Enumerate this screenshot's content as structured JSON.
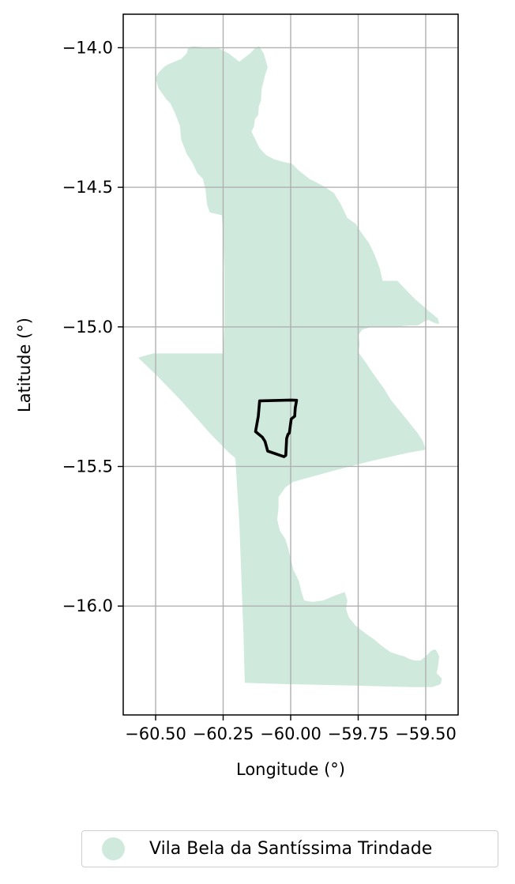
{
  "colors": {
    "region_fill": "#cfeadd",
    "grid": "#b0b0b0",
    "boundary": "#000000"
  },
  "axes": {
    "xlabel": "Longitude (°)",
    "ylabel": "Latitude (°)",
    "xlim": [
      -60.62,
      -59.38
    ],
    "ylim": [
      -16.39,
      -13.88
    ],
    "x_ticks": [
      {
        "value": -60.5,
        "label": "−60.50"
      },
      {
        "value": -60.25,
        "label": "−60.25"
      },
      {
        "value": -60.0,
        "label": "−60.00"
      },
      {
        "value": -59.75,
        "label": "−59.75"
      },
      {
        "value": -59.5,
        "label": "−59.50"
      }
    ],
    "y_ticks": [
      {
        "value": -14.0,
        "label": "−14.0"
      },
      {
        "value": -14.5,
        "label": "−14.5"
      },
      {
        "value": -15.0,
        "label": "−15.0"
      },
      {
        "value": -15.5,
        "label": "−15.5"
      },
      {
        "value": -16.0,
        "label": "−16.0"
      }
    ],
    "grid": true
  },
  "legend": {
    "label": "Vila Bela da Santíssima Trindade",
    "placement": "bottom-center"
  },
  "chart_data": {
    "type": "map",
    "region": {
      "name": "Vila Bela da Santíssima Trindade",
      "outline": [
        [
          -60.117,
          -13.995
        ],
        [
          -60.1,
          -14.02
        ],
        [
          -60.085,
          -14.07
        ],
        [
          -60.095,
          -14.1
        ],
        [
          -60.108,
          -14.15
        ],
        [
          -60.11,
          -14.19
        ],
        [
          -60.118,
          -14.21
        ],
        [
          -60.12,
          -14.24
        ],
        [
          -60.132,
          -14.255
        ],
        [
          -60.137,
          -14.285
        ],
        [
          -60.145,
          -14.3
        ],
        [
          -60.135,
          -14.32
        ],
        [
          -60.115,
          -14.36
        ],
        [
          -60.09,
          -14.385
        ],
        [
          -60.06,
          -14.4
        ],
        [
          -60.025,
          -14.41
        ],
        [
          -59.995,
          -14.415
        ],
        [
          -59.97,
          -14.44
        ],
        [
          -59.93,
          -14.47
        ],
        [
          -59.88,
          -14.495
        ],
        [
          -59.84,
          -14.52
        ],
        [
          -59.815,
          -14.56
        ],
        [
          -59.79,
          -14.61
        ],
        [
          -59.76,
          -14.63
        ],
        [
          -59.74,
          -14.66
        ],
        [
          -59.71,
          -14.7
        ],
        [
          -59.69,
          -14.74
        ],
        [
          -59.67,
          -14.79
        ],
        [
          -59.66,
          -14.835
        ],
        [
          -59.605,
          -14.835
        ],
        [
          -59.54,
          -14.9
        ],
        [
          -59.48,
          -14.95
        ],
        [
          -59.455,
          -14.97
        ],
        [
          -59.45,
          -14.99
        ],
        [
          -59.47,
          -14.985
        ],
        [
          -59.49,
          -14.975
        ],
        [
          -59.505,
          -14.98
        ],
        [
          -59.52,
          -14.99
        ],
        [
          -59.53,
          -14.995
        ],
        [
          -59.56,
          -14.995
        ],
        [
          -59.615,
          -15.0
        ],
        [
          -59.7,
          -15.0
        ],
        [
          -59.735,
          -15.01
        ],
        [
          -59.75,
          -15.03
        ],
        [
          -59.745,
          -15.06
        ],
        [
          -59.75,
          -15.09
        ],
        [
          -59.72,
          -15.13
        ],
        [
          -59.7,
          -15.16
        ],
        [
          -59.67,
          -15.2
        ],
        [
          -59.655,
          -15.22
        ],
        [
          -59.63,
          -15.26
        ],
        [
          -59.53,
          -15.38
        ],
        [
          -59.51,
          -15.41
        ],
        [
          -59.5,
          -15.44
        ],
        [
          -59.56,
          -15.45
        ],
        [
          -59.7,
          -15.48
        ],
        [
          -59.84,
          -15.515
        ],
        [
          -59.99,
          -15.555
        ],
        [
          -60.02,
          -15.575
        ],
        [
          -60.045,
          -15.61
        ],
        [
          -60.045,
          -15.65
        ],
        [
          -60.05,
          -15.69
        ],
        [
          -60.04,
          -15.73
        ],
        [
          -60.02,
          -15.76
        ],
        [
          -60.01,
          -15.79
        ],
        [
          -60.0,
          -15.83
        ],
        [
          -59.99,
          -15.87
        ],
        [
          -59.97,
          -15.91
        ],
        [
          -59.96,
          -15.95
        ],
        [
          -59.95,
          -15.98
        ],
        [
          -59.92,
          -15.985
        ],
        [
          -59.88,
          -15.98
        ],
        [
          -59.83,
          -15.96
        ],
        [
          -59.8,
          -15.95
        ],
        [
          -59.79,
          -15.98
        ],
        [
          -59.795,
          -16.01
        ],
        [
          -59.785,
          -16.04
        ],
        [
          -59.76,
          -16.07
        ],
        [
          -59.72,
          -16.1
        ],
        [
          -59.69,
          -16.12
        ],
        [
          -59.66,
          -16.145
        ],
        [
          -59.63,
          -16.165
        ],
        [
          -59.6,
          -16.175
        ],
        [
          -59.58,
          -16.18
        ],
        [
          -59.56,
          -16.19
        ],
        [
          -59.54,
          -16.195
        ],
        [
          -59.52,
          -16.195
        ],
        [
          -59.5,
          -16.18
        ],
        [
          -59.48,
          -16.16
        ],
        [
          -59.465,
          -16.155
        ],
        [
          -59.46,
          -16.16
        ],
        [
          -59.45,
          -16.18
        ],
        [
          -59.455,
          -16.22
        ],
        [
          -59.46,
          -16.24
        ],
        [
          -59.44,
          -16.26
        ],
        [
          -59.445,
          -16.28
        ],
        [
          -59.475,
          -16.29
        ],
        [
          -59.56,
          -16.29
        ],
        [
          -59.76,
          -16.285
        ],
        [
          -60.0,
          -16.28
        ],
        [
          -60.17,
          -16.275
        ],
        [
          -60.175,
          -16.1
        ],
        [
          -60.19,
          -15.7
        ],
        [
          -60.205,
          -15.47
        ],
        [
          -60.23,
          -15.45
        ],
        [
          -60.3,
          -15.38
        ],
        [
          -60.4,
          -15.27
        ],
        [
          -60.5,
          -15.17
        ],
        [
          -60.565,
          -15.11
        ],
        [
          -60.51,
          -15.095
        ],
        [
          -60.4,
          -15.095
        ],
        [
          -60.25,
          -15.095
        ],
        [
          -60.245,
          -15.0
        ],
        [
          -60.245,
          -14.8
        ],
        [
          -60.25,
          -14.65
        ],
        [
          -60.255,
          -14.6
        ],
        [
          -60.3,
          -14.59
        ],
        [
          -60.31,
          -14.56
        ],
        [
          -60.315,
          -14.51
        ],
        [
          -60.325,
          -14.47
        ],
        [
          -60.345,
          -14.45
        ],
        [
          -60.365,
          -14.41
        ],
        [
          -60.385,
          -14.38
        ],
        [
          -60.405,
          -14.33
        ],
        [
          -60.41,
          -14.28
        ],
        [
          -60.43,
          -14.23
        ],
        [
          -60.445,
          -14.2
        ],
        [
          -60.46,
          -14.185
        ],
        [
          -60.475,
          -14.165
        ],
        [
          -60.49,
          -14.145
        ],
        [
          -60.5,
          -14.11
        ],
        [
          -60.49,
          -14.09
        ],
        [
          -60.47,
          -14.07
        ],
        [
          -60.455,
          -14.06
        ],
        [
          -60.43,
          -14.05
        ],
        [
          -60.405,
          -14.04
        ],
        [
          -60.385,
          -14.02
        ],
        [
          -60.38,
          -14.0
        ],
        [
          -60.36,
          -13.995
        ],
        [
          -60.31,
          -14.0
        ],
        [
          -60.27,
          -14.0
        ],
        [
          -60.23,
          -14.02
        ],
        [
          -60.19,
          -14.05
        ],
        [
          -60.15,
          -14.02
        ],
        [
          -60.13,
          -14.0
        ],
        [
          -60.117,
          -13.995
        ]
      ]
    },
    "boundary": {
      "outline": [
        [
          -60.115,
          -15.265
        ],
        [
          -60.0,
          -15.262
        ],
        [
          -59.978,
          -15.263
        ],
        [
          -59.983,
          -15.29
        ],
        [
          -59.985,
          -15.32
        ],
        [
          -59.998,
          -15.33
        ],
        [
          -60.005,
          -15.38
        ],
        [
          -60.01,
          -15.385
        ],
        [
          -60.015,
          -15.4
        ],
        [
          -60.018,
          -15.46
        ],
        [
          -60.025,
          -15.465
        ],
        [
          -60.085,
          -15.445
        ],
        [
          -60.095,
          -15.41
        ],
        [
          -60.105,
          -15.395
        ],
        [
          -60.13,
          -15.375
        ],
        [
          -60.12,
          -15.32
        ],
        [
          -60.115,
          -15.265
        ]
      ]
    }
  }
}
